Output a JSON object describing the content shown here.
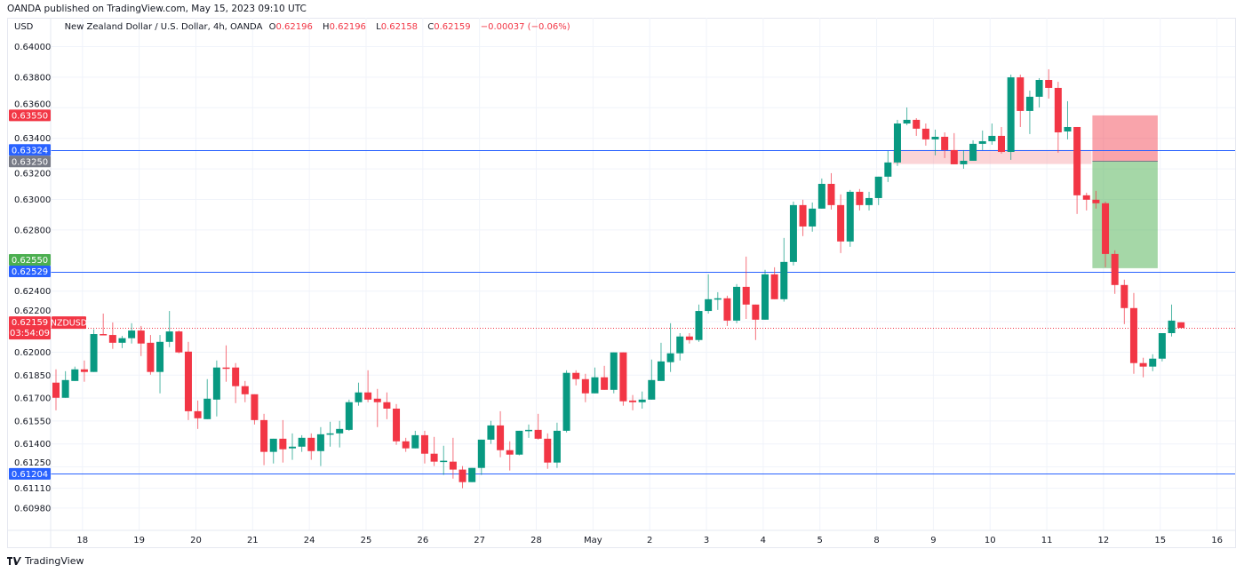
{
  "published": "OANDA published on TradingView.com, May 15, 2023 09:10 UTC",
  "legend": {
    "currency": "USD",
    "symbol_desc": "New Zealand Dollar / U.S. Dollar, 4h, OANDA",
    "o_label": "O",
    "o": "0.62196",
    "h_label": "H",
    "h": "0.62196",
    "l_label": "L",
    "l": "0.62158",
    "c_label": "C",
    "c": "0.62159",
    "change": "−0.00037 (−0.06%)"
  },
  "logo": {
    "text": "TradingView",
    "icon": "tradingview-logo-icon"
  },
  "colors": {
    "up": "#089981",
    "down": "#f23645",
    "hline": "#2962ff",
    "grid": "#f0f3fa",
    "stop_zone": "#f23645",
    "target_zone": "#4caf50",
    "zone": "#f7a9b0"
  },
  "chart_data": {
    "type": "candlestick",
    "symbol": "NZDUSD",
    "timeframe": "4h",
    "ylim": [
      0.6093,
      0.641
    ],
    "y_ticks": [
      "0.64000",
      "0.63800",
      "0.63600",
      "0.63400",
      "0.63200",
      "0.63000",
      "0.62800",
      "0.62400",
      "0.62200",
      "0.62000",
      "0.61850",
      "0.61700",
      "0.61550",
      "0.61400",
      "0.61250",
      "0.61110",
      "0.60980"
    ],
    "x_ticks": [
      "18",
      "19",
      "20",
      "21",
      "24",
      "25",
      "26",
      "27",
      "28",
      "May",
      "2",
      "3",
      "4",
      "5",
      "8",
      "9",
      "10",
      "11",
      "12",
      "15",
      "16"
    ],
    "bars_per_day": 6,
    "first_tick_bar": 2.8,
    "ohlc": [
      [
        0.61801,
        0.61888,
        0.6162,
        0.61702
      ],
      [
        0.61702,
        0.61876,
        0.61702,
        0.61818
      ],
      [
        0.61812,
        0.61906,
        0.61812,
        0.61888
      ],
      [
        0.61888,
        0.61946,
        0.61807,
        0.61871
      ],
      [
        0.61871,
        0.6215,
        0.61871,
        0.62119
      ],
      [
        0.62119,
        0.62253,
        0.62113,
        0.62113
      ],
      [
        0.62113,
        0.62195,
        0.62022,
        0.62062
      ],
      [
        0.62062,
        0.62107,
        0.62027,
        0.62092
      ],
      [
        0.62092,
        0.6219,
        0.62057,
        0.62142
      ],
      [
        0.62142,
        0.62172,
        0.61975,
        0.62057
      ],
      [
        0.62062,
        0.62113,
        0.61853,
        0.61871
      ],
      [
        0.61871,
        0.62113,
        0.61731,
        0.62068
      ],
      [
        0.62068,
        0.6227,
        0.62033,
        0.62136
      ],
      [
        0.62136,
        0.62142,
        0.61993,
        0.61999
      ],
      [
        0.62004,
        0.62068,
        0.61556,
        0.61614
      ],
      [
        0.61614,
        0.61684,
        0.61498,
        0.61568
      ],
      [
        0.61562,
        0.61824,
        0.61562,
        0.61696
      ],
      [
        0.6169,
        0.61946,
        0.6158,
        0.619
      ],
      [
        0.619,
        0.62045,
        0.61807,
        0.61894
      ],
      [
        0.619,
        0.61929,
        0.61667,
        0.61778
      ],
      [
        0.61778,
        0.61812,
        0.61673,
        0.61725
      ],
      [
        0.61725,
        0.61725,
        0.61527,
        0.61556
      ],
      [
        0.61556,
        0.61597,
        0.61261,
        0.61348
      ],
      [
        0.61348,
        0.61434,
        0.61272,
        0.61434
      ],
      [
        0.61434,
        0.61556,
        0.61278,
        0.61365
      ],
      [
        0.61371,
        0.61469,
        0.61296,
        0.61382
      ],
      [
        0.61382,
        0.61457,
        0.61348,
        0.6144
      ],
      [
        0.6144,
        0.61469,
        0.61296,
        0.61353
      ],
      [
        0.61353,
        0.6151,
        0.61255,
        0.61463
      ],
      [
        0.61463,
        0.61545,
        0.61382,
        0.61469
      ],
      [
        0.61469,
        0.61551,
        0.61377,
        0.61498
      ],
      [
        0.61492,
        0.6169,
        0.61486,
        0.61673
      ],
      [
        0.61673,
        0.61801,
        0.6165,
        0.61737
      ],
      [
        0.61737,
        0.61882,
        0.61673,
        0.6169
      ],
      [
        0.61696,
        0.6176,
        0.6151,
        0.61673
      ],
      [
        0.61673,
        0.61737,
        0.61562,
        0.61631
      ],
      [
        0.61631,
        0.61661,
        0.61394,
        0.61417
      ],
      [
        0.61417,
        0.6144,
        0.61348,
        0.61371
      ],
      [
        0.61371,
        0.61486,
        0.61371,
        0.61457
      ],
      [
        0.61457,
        0.61486,
        0.61272,
        0.61336
      ],
      [
        0.61336,
        0.61446,
        0.61255,
        0.61284
      ],
      [
        0.61284,
        0.61388,
        0.61197,
        0.6129
      ],
      [
        0.61284,
        0.6144,
        0.61173,
        0.61232
      ],
      [
        0.61232,
        0.61255,
        0.6111,
        0.6115
      ],
      [
        0.6115,
        0.61243,
        0.6115,
        0.61243
      ],
      [
        0.61243,
        0.61428,
        0.61197,
        0.61428
      ],
      [
        0.61428,
        0.61551,
        0.614,
        0.61521
      ],
      [
        0.61521,
        0.61614,
        0.61313,
        0.61359
      ],
      [
        0.61359,
        0.61417,
        0.61226,
        0.6133
      ],
      [
        0.6133,
        0.61486,
        0.61325,
        0.61486
      ],
      [
        0.61486,
        0.61527,
        0.6144,
        0.61492
      ],
      [
        0.61492,
        0.61597,
        0.61428,
        0.61434
      ],
      [
        0.61434,
        0.61469,
        0.61237,
        0.61278
      ],
      [
        0.61278,
        0.61539,
        0.61243,
        0.61486
      ],
      [
        0.61486,
        0.61882,
        0.61475,
        0.61865
      ],
      [
        0.61865,
        0.61882,
        0.61783,
        0.61824
      ],
      [
        0.61824,
        0.61859,
        0.61673,
        0.61731
      ],
      [
        0.61731,
        0.619,
        0.61731,
        0.61836
      ],
      [
        0.61836,
        0.61911,
        0.61754,
        0.61754
      ],
      [
        0.61754,
        0.61999,
        0.61731,
        0.61999
      ],
      [
        0.61999,
        0.61999,
        0.6165,
        0.61679
      ],
      [
        0.61684,
        0.6172,
        0.6162,
        0.61673
      ],
      [
        0.61673,
        0.61743,
        0.61631,
        0.6169
      ],
      [
        0.6169,
        0.61952,
        0.6169,
        0.61818
      ],
      [
        0.61812,
        0.62062,
        0.61812,
        0.6194
      ],
      [
        0.61935,
        0.6219,
        0.61871,
        0.61993
      ],
      [
        0.61993,
        0.62125,
        0.61946,
        0.62103
      ],
      [
        0.62103,
        0.62125,
        0.62057,
        0.6208
      ],
      [
        0.6208,
        0.62312,
        0.62068,
        0.6227
      ],
      [
        0.6227,
        0.6251,
        0.62253,
        0.62347
      ],
      [
        0.62347,
        0.62393,
        0.62277,
        0.62353
      ],
      [
        0.62353,
        0.6237,
        0.62172,
        0.62207
      ],
      [
        0.62207,
        0.62446,
        0.6219,
        0.62428
      ],
      [
        0.62428,
        0.62626,
        0.62218,
        0.62312
      ],
      [
        0.62312,
        0.62312,
        0.6208,
        0.62213
      ],
      [
        0.62213,
        0.62539,
        0.62213,
        0.6251
      ],
      [
        0.6251,
        0.62556,
        0.62347,
        0.62347
      ],
      [
        0.62347,
        0.62748,
        0.62331,
        0.62591
      ],
      [
        0.62591,
        0.62986,
        0.62568,
        0.62963
      ],
      [
        0.62963,
        0.62998,
        0.6276,
        0.62823
      ],
      [
        0.62823,
        0.6298,
        0.62789,
        0.6294
      ],
      [
        0.6294,
        0.63137,
        0.6294,
        0.63102
      ],
      [
        0.63102,
        0.63172,
        0.62934,
        0.62963
      ],
      [
        0.62963,
        0.63033,
        0.62649,
        0.62725
      ],
      [
        0.62725,
        0.63062,
        0.6269,
        0.6305
      ],
      [
        0.6305,
        0.63068,
        0.62928,
        0.62963
      ],
      [
        0.62963,
        0.6305,
        0.62928,
        0.63009
      ],
      [
        0.63009,
        0.63149,
        0.62963,
        0.63149
      ],
      [
        0.63149,
        0.63317,
        0.63114,
        0.63242
      ],
      [
        0.63242,
        0.63521,
        0.63219,
        0.63497
      ],
      [
        0.63497,
        0.63602,
        0.63486,
        0.63521
      ],
      [
        0.63521,
        0.63532,
        0.63416,
        0.63463
      ],
      [
        0.63463,
        0.63497,
        0.63352,
        0.63393
      ],
      [
        0.63393,
        0.63457,
        0.63288,
        0.6341
      ],
      [
        0.6341,
        0.63439,
        0.63271,
        0.63323
      ],
      [
        0.63323,
        0.63434,
        0.6323,
        0.6323
      ],
      [
        0.6323,
        0.63323,
        0.63201,
        0.63253
      ],
      [
        0.63253,
        0.63387,
        0.63253,
        0.63364
      ],
      [
        0.63364,
        0.63451,
        0.63323,
        0.63381
      ],
      [
        0.63381,
        0.63497,
        0.63358,
        0.63416
      ],
      [
        0.63416,
        0.63474,
        0.633,
        0.63311
      ],
      [
        0.63311,
        0.63817,
        0.63259,
        0.63799
      ],
      [
        0.63799,
        0.63817,
        0.63474,
        0.63579
      ],
      [
        0.63579,
        0.63712,
        0.63428,
        0.63672
      ],
      [
        0.63672,
        0.63794,
        0.63602,
        0.63782
      ],
      [
        0.63782,
        0.63852,
        0.6366,
        0.6373
      ],
      [
        0.6373,
        0.6377,
        0.63306,
        0.63439
      ],
      [
        0.63445,
        0.63643,
        0.63393,
        0.63474
      ],
      [
        0.63474,
        0.63474,
        0.62905,
        0.63027
      ],
      [
        0.63027,
        0.63044,
        0.62928,
        0.62998
      ],
      [
        0.62998,
        0.63056,
        0.6294,
        0.62975
      ],
      [
        0.62975,
        0.62986,
        0.62556,
        0.62643
      ],
      [
        0.62643,
        0.62667,
        0.62382,
        0.6244
      ],
      [
        0.6244,
        0.62475,
        0.62184,
        0.62289
      ],
      [
        0.62289,
        0.62388,
        0.61859,
        0.61929
      ],
      [
        0.61929,
        0.61964,
        0.61836,
        0.61906
      ],
      [
        0.61906,
        0.61987,
        0.61876,
        0.61958
      ],
      [
        0.61958,
        0.62125,
        0.6194,
        0.62125
      ],
      [
        0.62125,
        0.62312,
        0.62103,
        0.62207
      ],
      [
        0.62196,
        0.62196,
        0.62158,
        0.62159
      ]
    ],
    "horizontal_lines": [
      {
        "price": 0.63324,
        "label": "0.63324"
      },
      {
        "price": 0.62529,
        "label": "0.62529"
      },
      {
        "price": 0.61204,
        "label": "0.61204"
      }
    ],
    "resistance_zone": {
      "from_bar": 89,
      "to_bar": 110,
      "top": 0.63324,
      "bottom": 0.63232
    },
    "short_position": {
      "from_bar": 110,
      "to_bar": 117,
      "entry": 0.6325,
      "stop": 0.6355,
      "target": 0.6255,
      "stop_label": "0.63550",
      "entry_label": "0.63250",
      "target_label": "0.62550"
    },
    "last_price": {
      "price": 0.62159,
      "label": "0.62159",
      "countdown": "03:54:09",
      "symbol_tag": "NZDUSD"
    }
  }
}
